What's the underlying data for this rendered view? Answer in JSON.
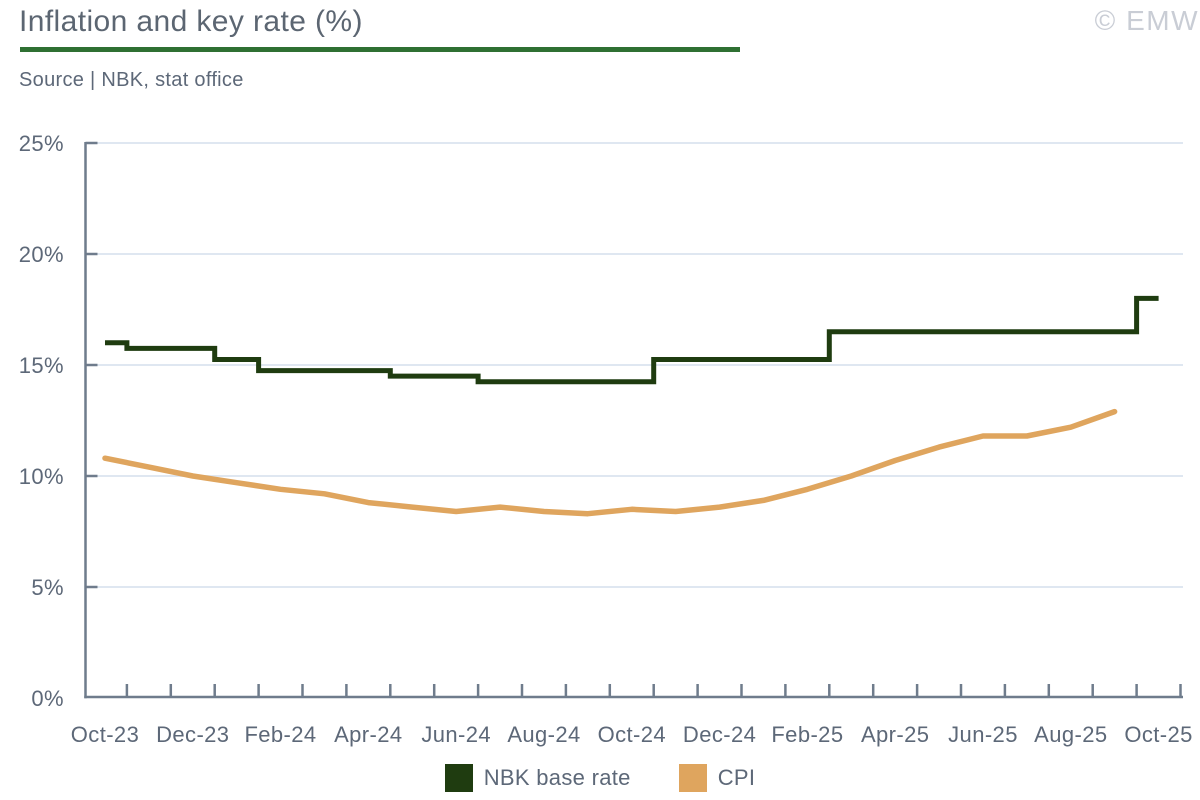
{
  "header": {
    "title": "Inflation and key rate (%)",
    "source": "Source | NBK, stat office",
    "watermark": "© EMW"
  },
  "colors": {
    "accent_green": "#2f7032",
    "series_nbk": "#1f3c10",
    "series_cpi": "#dfa55e",
    "text": "#5d6878",
    "axis": "#6f7c8c",
    "gridline": "#dfe7f1",
    "watermark": "#c9cdd5"
  },
  "chart_data": {
    "type": "line",
    "title": "Inflation and key rate (%)",
    "categories": [
      "Oct-23",
      "Nov-23",
      "Dec-23",
      "Jan-24",
      "Feb-24",
      "Mar-24",
      "Apr-24",
      "May-24",
      "Jun-24",
      "Jul-24",
      "Aug-24",
      "Sep-24",
      "Oct-24",
      "Nov-24",
      "Dec-24",
      "Jan-25",
      "Feb-25",
      "Mar-25",
      "Apr-25",
      "May-25",
      "Jun-25",
      "Jul-25",
      "Aug-25",
      "Sep-25",
      "Oct-25"
    ],
    "x_tick_labels": [
      "Oct-23",
      "Dec-23",
      "Feb-24",
      "Apr-24",
      "Jun-24",
      "Aug-24",
      "Oct-24",
      "Dec-24",
      "Feb-25",
      "Apr-25",
      "Jun-25",
      "Aug-25",
      "Oct-25"
    ],
    "y_ticks": {
      "values": [
        0,
        5,
        10,
        15,
        20,
        25
      ],
      "labels": [
        "0%",
        "5%",
        "10%",
        "15%",
        "20%",
        "25%"
      ]
    },
    "ylim": [
      0,
      25
    ],
    "grid": true,
    "legend_position": "bottom",
    "series": [
      {
        "name": "NBK base rate",
        "style": "step",
        "color": "#1f3c10",
        "values": [
          16.0,
          15.75,
          15.75,
          15.25,
          14.75,
          14.75,
          14.75,
          14.5,
          14.5,
          14.25,
          14.25,
          14.25,
          14.25,
          15.25,
          15.25,
          15.25,
          15.25,
          16.5,
          16.5,
          16.5,
          16.5,
          16.5,
          16.5,
          16.5,
          18.0
        ]
      },
      {
        "name": "CPI",
        "style": "line",
        "color": "#dfa55e",
        "values": [
          10.8,
          10.4,
          10.0,
          9.7,
          9.4,
          9.2,
          8.8,
          8.6,
          8.4,
          8.6,
          8.4,
          8.3,
          8.5,
          8.4,
          8.6,
          8.9,
          9.4,
          10.0,
          10.7,
          11.3,
          11.8,
          11.8,
          12.2,
          12.9
        ]
      }
    ]
  },
  "legend": {
    "items": [
      {
        "label": "NBK base rate",
        "color": "#1f3c10"
      },
      {
        "label": "CPI",
        "color": "#dfa55e"
      }
    ]
  }
}
